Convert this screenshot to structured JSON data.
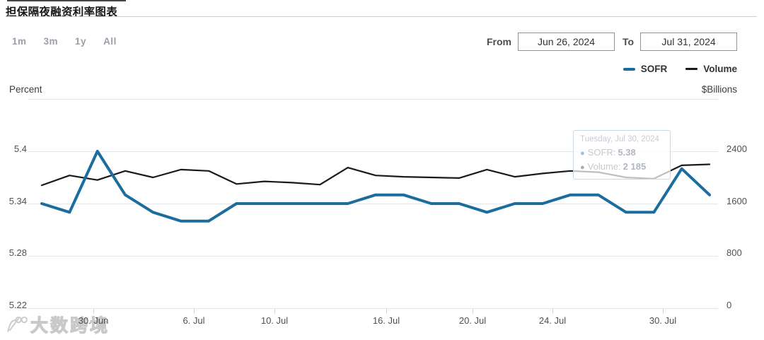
{
  "page": {
    "title": "担保隔夜融资利率图表"
  },
  "range_selector": {
    "buttons": [
      "1m",
      "3m",
      "1y",
      "All"
    ]
  },
  "date_filter": {
    "from_label": "From",
    "from_value": "Jun 26, 2024",
    "to_label": "To",
    "to_value": "Jul 31, 2024"
  },
  "legend": {
    "items": [
      {
        "label": "SOFR"
      },
      {
        "label": "Volume"
      }
    ]
  },
  "tooltip": {
    "date": "Tuesday, Jul 30, 2024",
    "rows": [
      {
        "label": "SOFR:",
        "value": "5.38",
        "bullet_color": "#9cc2de"
      },
      {
        "label": "Volume:",
        "value": "2 185",
        "bullet_color": "#a8adb3"
      }
    ]
  },
  "watermark": {
    "text": "大数跨境"
  },
  "chart_data": {
    "type": "line",
    "title": "担保隔夜融资利率图表",
    "x": [
      "Jun 26",
      "Jun 27",
      "Jun 28",
      "Jul 1",
      "Jul 2",
      "Jul 3",
      "Jul 5",
      "Jul 8",
      "Jul 9",
      "Jul 10",
      "Jul 11",
      "Jul 12",
      "Jul 15",
      "Jul 16",
      "Jul 17",
      "Jul 18",
      "Jul 19",
      "Jul 22",
      "Jul 23",
      "Jul 24",
      "Jul 25",
      "Jul 26",
      "Jul 29",
      "Jul 30",
      "Jul 31"
    ],
    "series": [
      {
        "name": "SOFR",
        "yaxis": "left",
        "unit": "Percent",
        "color": "#1b6d9d",
        "values": [
          5.34,
          5.33,
          5.4,
          5.35,
          5.33,
          5.32,
          5.32,
          5.34,
          5.34,
          5.34,
          5.34,
          5.34,
          5.35,
          5.35,
          5.34,
          5.34,
          5.33,
          5.34,
          5.34,
          5.35,
          5.35,
          5.33,
          5.33,
          5.38,
          5.35
        ]
      },
      {
        "name": "Volume",
        "yaxis": "right",
        "unit": "$Billions",
        "color": "#1a1a1a",
        "values": [
          1880,
          2030,
          1960,
          2100,
          2000,
          2120,
          2100,
          1900,
          1940,
          1920,
          1890,
          2150,
          2030,
          2010,
          2000,
          1990,
          2120,
          2010,
          2060,
          2100,
          2080,
          2000,
          1980,
          2185,
          2200
        ]
      }
    ],
    "left_axis": {
      "label": "Percent",
      "min": 5.22,
      "max": 5.46,
      "tick_labels": [
        "5.4",
        "5.34",
        "5.28",
        "5.22"
      ]
    },
    "right_axis": {
      "label": "$Billions",
      "min": 0,
      "max": 3200,
      "tick_labels": [
        "2400",
        "1600",
        "800",
        "0"
      ]
    },
    "x_tick_labels": [
      "30. Jun",
      "6. Jul",
      "10. Jul",
      "16. Jul",
      "20. Jul",
      "24. Jul",
      "30. Jul"
    ],
    "grid": true,
    "legend_position": "top-right"
  }
}
